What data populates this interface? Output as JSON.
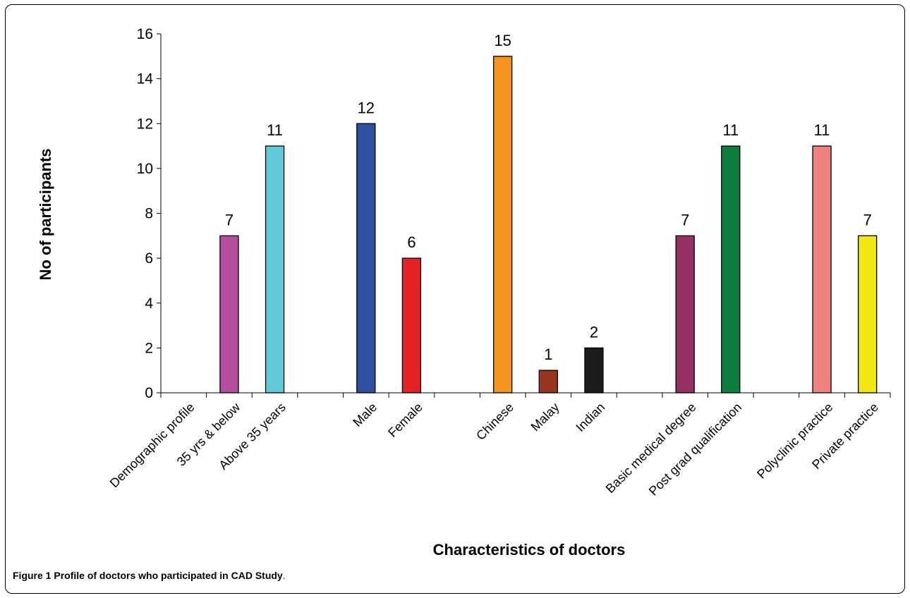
{
  "caption": {
    "prefix": "Figure 1",
    "text": "Profile of doctors who participated in CAD Study",
    "suffix": "."
  },
  "chart_data": {
    "type": "bar",
    "title": "",
    "xlabel": "Characteristics of doctors",
    "ylabel": "No of participants",
    "ylim": [
      0,
      16
    ],
    "yticks": [
      0,
      2,
      4,
      6,
      8,
      10,
      12,
      14,
      16
    ],
    "grid": false,
    "legend": "none",
    "categories": [
      "Demographic profile",
      "35 yrs & below",
      "Above 35 years",
      "",
      "Male",
      "Female",
      "",
      "Chinese",
      "Malay",
      "Indian",
      "",
      "Basic medical degree",
      "Post grad qualification",
      "",
      "Polyclinic practice",
      "Private practice"
    ],
    "values": [
      null,
      7,
      11,
      null,
      12,
      6,
      null,
      15,
      1,
      2,
      null,
      7,
      11,
      null,
      11,
      7
    ],
    "data_labels": [
      "",
      "7",
      "11",
      "",
      "12",
      "6",
      "",
      "15",
      "1",
      "2",
      "",
      "7",
      "11",
      "",
      "11",
      "7"
    ],
    "colors": [
      "#ffffff",
      "#b44fa0",
      "#62c9d9",
      "#ffffff",
      "#3050a4",
      "#e52226",
      "#ffffff",
      "#f5951f",
      "#9a3520",
      "#1c1c1c",
      "#ffffff",
      "#952f64",
      "#0c7f3e",
      "#ffffff",
      "#f08181",
      "#f2e712"
    ]
  }
}
